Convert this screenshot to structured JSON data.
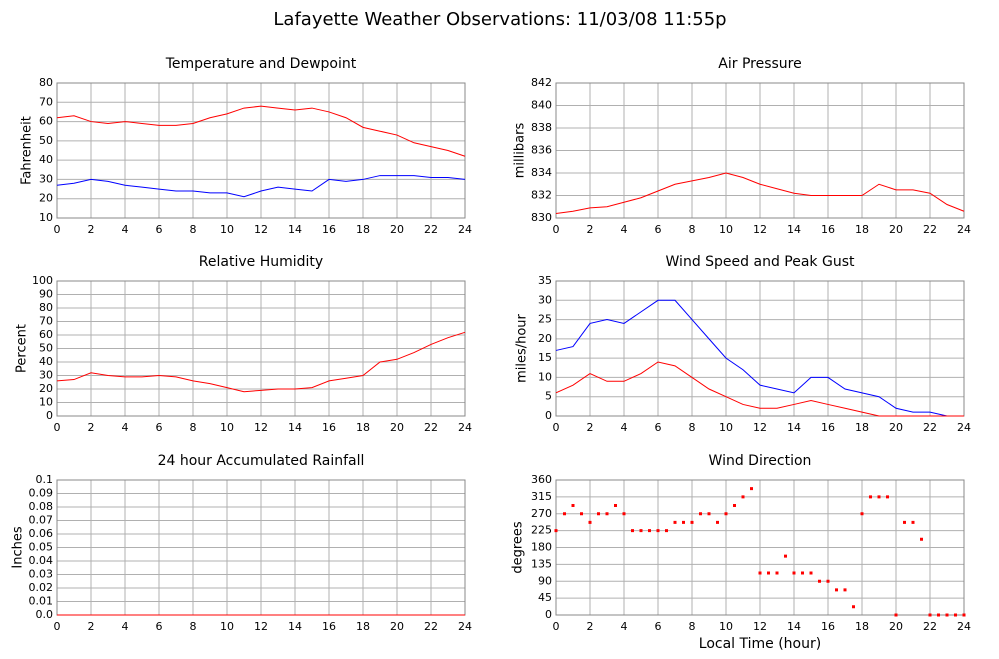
{
  "title": "Lafayette Weather Observations: 11/03/08 11:55p",
  "xlabel": "Local Time (hour)",
  "chart_data": [
    {
      "type": "line",
      "title": "Temperature and Dewpoint",
      "ylabel": "Fahrenheit",
      "x": [
        0,
        1,
        2,
        3,
        4,
        5,
        6,
        7,
        8,
        9,
        10,
        11,
        12,
        13,
        14,
        15,
        16,
        17,
        18,
        19,
        20,
        21,
        22,
        23,
        24
      ],
      "series": [
        {
          "color": "#ff0000",
          "values": [
            62,
            63,
            60,
            59,
            60,
            59,
            58,
            58,
            59,
            62,
            64,
            67,
            68,
            67,
            66,
            67,
            65,
            62,
            57,
            55,
            53,
            49,
            47,
            45,
            42
          ]
        },
        {
          "color": "#0000ff",
          "values": [
            27,
            28,
            30,
            29,
            27,
            26,
            25,
            24,
            24,
            23,
            23,
            21,
            24,
            26,
            25,
            24,
            30,
            29,
            30,
            32,
            32,
            32,
            31,
            31,
            30
          ]
        }
      ],
      "xlim": [
        0,
        24
      ],
      "xticks": [
        0,
        2,
        4,
        6,
        8,
        10,
        12,
        14,
        16,
        18,
        20,
        22,
        24
      ],
      "ylim": [
        10,
        80
      ],
      "yticks": [
        10,
        20,
        30,
        40,
        50,
        60,
        70,
        80
      ],
      "grid": true
    },
    {
      "type": "line",
      "title": "Air Pressure",
      "ylabel": "millibars",
      "x": [
        0,
        1,
        2,
        3,
        4,
        5,
        6,
        7,
        8,
        9,
        10,
        11,
        12,
        13,
        14,
        15,
        16,
        17,
        18,
        19,
        20,
        21,
        22,
        23,
        24
      ],
      "series": [
        {
          "color": "#ff0000",
          "values": [
            830.4,
            830.6,
            830.9,
            831.0,
            831.4,
            831.8,
            832.4,
            833.0,
            833.3,
            833.6,
            834.0,
            833.6,
            833.0,
            832.6,
            832.2,
            832.0,
            832.0,
            832.0,
            832.0,
            833.0,
            832.5,
            832.5,
            832.2,
            831.2,
            830.6
          ]
        }
      ],
      "xlim": [
        0,
        24
      ],
      "xticks": [
        0,
        2,
        4,
        6,
        8,
        10,
        12,
        14,
        16,
        18,
        20,
        22,
        24
      ],
      "ylim": [
        830,
        842
      ],
      "yticks": [
        830,
        832,
        834,
        836,
        838,
        840,
        842
      ],
      "grid": true
    },
    {
      "type": "line",
      "title": "Relative Humidity",
      "ylabel": "Percent",
      "x": [
        0,
        1,
        2,
        3,
        4,
        5,
        6,
        7,
        8,
        9,
        10,
        11,
        12,
        13,
        14,
        15,
        16,
        17,
        18,
        19,
        20,
        21,
        22,
        23,
        24
      ],
      "series": [
        {
          "color": "#ff0000",
          "values": [
            26,
            27,
            32,
            30,
            29,
            29,
            30,
            29,
            26,
            24,
            21,
            18,
            19,
            20,
            20,
            21,
            26,
            28,
            30,
            40,
            42,
            47,
            53,
            58,
            62
          ]
        }
      ],
      "xlim": [
        0,
        24
      ],
      "xticks": [
        0,
        2,
        4,
        6,
        8,
        10,
        12,
        14,
        16,
        18,
        20,
        22,
        24
      ],
      "ylim": [
        0,
        100
      ],
      "yticks": [
        0,
        10,
        20,
        30,
        40,
        50,
        60,
        70,
        80,
        90,
        100
      ],
      "grid": true
    },
    {
      "type": "line",
      "title": "Wind Speed and Peak Gust",
      "ylabel": "miles/hour",
      "x": [
        0,
        1,
        2,
        3,
        4,
        5,
        6,
        7,
        8,
        9,
        10,
        11,
        12,
        13,
        14,
        15,
        16,
        17,
        18,
        19,
        20,
        21,
        22,
        23,
        24
      ],
      "series": [
        {
          "color": "#0000ff",
          "values": [
            17,
            18,
            24,
            25,
            24,
            27,
            30,
            30,
            25,
            20,
            15,
            12,
            8,
            7,
            6,
            10,
            10,
            7,
            6,
            5,
            2,
            1,
            1,
            0,
            0
          ]
        },
        {
          "color": "#ff0000",
          "values": [
            6,
            8,
            11,
            9,
            9,
            11,
            14,
            13,
            10,
            7,
            5,
            3,
            2,
            2,
            3,
            4,
            3,
            2,
            1,
            0,
            0,
            0,
            0,
            0,
            0
          ]
        }
      ],
      "xlim": [
        0,
        24
      ],
      "xticks": [
        0,
        2,
        4,
        6,
        8,
        10,
        12,
        14,
        16,
        18,
        20,
        22,
        24
      ],
      "ylim": [
        0,
        35
      ],
      "yticks": [
        0,
        5,
        10,
        15,
        20,
        25,
        30,
        35
      ],
      "grid": true
    },
    {
      "type": "line",
      "title": "24 hour Accumulated Rainfall",
      "ylabel": "Inches",
      "x": [
        0,
        1,
        2,
        3,
        4,
        5,
        6,
        7,
        8,
        9,
        10,
        11,
        12,
        13,
        14,
        15,
        16,
        17,
        18,
        19,
        20,
        21,
        22,
        23,
        24
      ],
      "series": [
        {
          "color": "#ff0000",
          "values": [
            0,
            0,
            0,
            0,
            0,
            0,
            0,
            0,
            0,
            0,
            0,
            0,
            0,
            0,
            0,
            0,
            0,
            0,
            0,
            0,
            0,
            0,
            0,
            0,
            0
          ]
        }
      ],
      "xlim": [
        0,
        24
      ],
      "xticks": [
        0,
        2,
        4,
        6,
        8,
        10,
        12,
        14,
        16,
        18,
        20,
        22,
        24
      ],
      "ylim": [
        0,
        0.1
      ],
      "yticks": [
        {
          "value": 0,
          "label": "0.0"
        },
        0.01,
        0.02,
        0.03,
        0.04,
        0.05,
        0.06,
        0.07,
        0.08,
        0.09,
        0.1
      ],
      "grid": true
    },
    {
      "type": "scatter",
      "title": "Wind Direction",
      "ylabel": "degrees",
      "x": [
        0,
        0.5,
        1,
        1.5,
        2,
        2.5,
        3,
        3.5,
        4,
        4.5,
        5,
        5.5,
        6,
        6.5,
        7,
        7.5,
        8,
        8.5,
        9,
        9.5,
        10,
        10.5,
        11,
        11.5,
        12,
        12.5,
        13,
        13.5,
        14,
        14.5,
        15,
        15.5,
        16,
        16.5,
        17,
        17.5,
        18,
        18.5,
        19,
        19.5,
        20,
        20.5,
        21,
        21.5,
        22,
        22.5,
        23,
        23.5,
        24
      ],
      "series": [
        {
          "color": "#ff0000",
          "values": [
            225,
            270,
            292,
            270,
            247,
            270,
            270,
            292,
            270,
            225,
            225,
            225,
            225,
            225,
            247,
            247,
            247,
            270,
            270,
            247,
            270,
            292,
            315,
            337,
            112,
            112,
            112,
            157,
            112,
            112,
            112,
            90,
            90,
            67,
            67,
            22,
            270,
            315,
            315,
            315,
            0,
            247,
            247,
            202,
            0,
            0,
            0,
            0,
            0
          ]
        }
      ],
      "xlim": [
        0,
        24
      ],
      "xticks": [
        0,
        2,
        4,
        6,
        8,
        10,
        12,
        14,
        16,
        18,
        20,
        22,
        24
      ],
      "ylim": [
        0,
        360
      ],
      "yticks": [
        0,
        45,
        90,
        135,
        180,
        225,
        270,
        315,
        360
      ],
      "grid": true
    }
  ]
}
